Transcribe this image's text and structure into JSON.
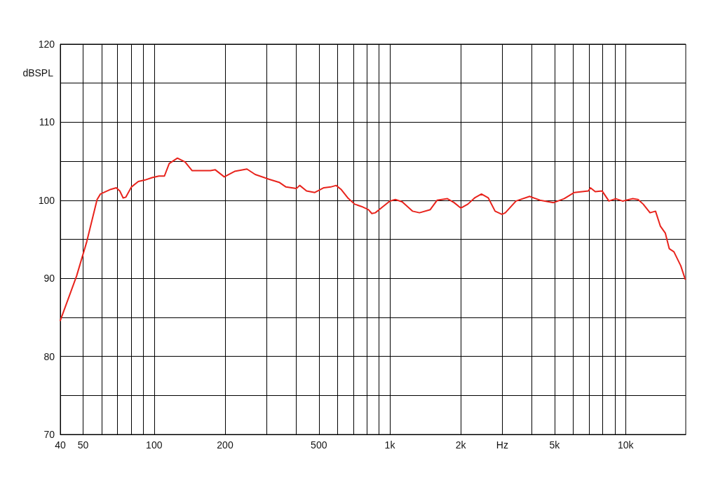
{
  "chart_data": {
    "type": "line",
    "ylabel": "dBSPL",
    "log": "x",
    "grid": true,
    "marker": "none",
    "line_style": "solid",
    "xlim": [
      40,
      18000
    ],
    "ylim": [
      70,
      120
    ],
    "xticks": [
      40,
      50,
      {
        "value": 60,
        "label": null
      },
      {
        "value": 70,
        "label": null
      },
      {
        "value": 80,
        "label": null
      },
      {
        "value": 90,
        "label": null
      },
      100,
      200,
      {
        "value": 300,
        "label": null
      },
      {
        "value": 400,
        "label": null
      },
      500,
      {
        "value": 600,
        "label": null
      },
      {
        "value": 700,
        "label": null
      },
      {
        "value": 800,
        "label": null
      },
      {
        "value": 900,
        "label": null
      },
      {
        "value": 1000,
        "label": "1k"
      },
      {
        "value": 2000,
        "label": "2k"
      },
      {
        "value": 3000,
        "label": "Hz"
      },
      {
        "value": 4000,
        "label": null
      },
      {
        "value": 5000,
        "label": "5k"
      },
      {
        "value": 6000,
        "label": null
      },
      {
        "value": 7000,
        "label": null
      },
      {
        "value": 8000,
        "label": null
      },
      {
        "value": 9000,
        "label": null
      },
      {
        "value": 10000,
        "label": "10k"
      }
    ],
    "yticks": [
      70,
      {
        "value": 75,
        "label": null
      },
      80,
      {
        "value": 85,
        "label": null
      },
      90,
      {
        "value": 95,
        "label": null
      },
      100,
      {
        "value": 105,
        "label": null
      },
      110,
      {
        "value": 115,
        "label": null
      },
      120
    ],
    "series": [
      {
        "color": "#e8231c",
        "x": [
          40,
          46.9,
          51.8,
          57.3,
          59.2,
          65.5,
          69.1,
          71.5,
          73.9,
          75.9,
          80.1,
          85.7,
          91.6,
          98,
          104.8,
          110.6,
          115.9,
          125.6,
          135.3,
          144.8,
          156.8,
          173.4,
          181.8,
          198.4,
          219.5,
          247.6,
          268.5,
          306.8,
          339.2,
          362.6,
          401.1,
          414.8,
          443.3,
          480.5,
          524.9,
          561,
          592,
          620.7,
          663.4,
          709.5,
          758.4,
          810.7,
          838.8,
          867.9,
          927.8,
          1000,
          1055,
          1128,
          1250,
          1336,
          1484,
          1586,
          1755,
          1873,
          2002,
          2142,
          2289,
          2447,
          2616,
          2796,
          2989,
          3090,
          3430,
          3919,
          4337,
          4950,
          5483,
          6061,
          6952,
          7094,
          7436,
          7949,
          8497,
          9084,
          9711,
          10730,
          11300,
          11880,
          12700,
          13400,
          14040,
          14740,
          15320,
          16040,
          17150,
          17900
        ],
        "values": [
          84.6,
          90.3,
          94.7,
          100.1,
          100.8,
          101.4,
          101.6,
          101.2,
          100.3,
          100.4,
          101.7,
          102.4,
          102.6,
          102.9,
          103.1,
          103.1,
          104.7,
          105.4,
          104.9,
          103.8,
          103.8,
          103.8,
          103.9,
          103,
          103.7,
          104,
          103.3,
          102.7,
          102.3,
          101.7,
          101.5,
          101.9,
          101.2,
          101,
          101.6,
          101.7,
          101.9,
          101.4,
          100.3,
          99.5,
          99.2,
          98.8,
          98.3,
          98.4,
          99.1,
          99.9,
          100.1,
          99.8,
          98.6,
          98.4,
          98.8,
          100,
          100.2,
          99.7,
          99,
          99.5,
          100.3,
          100.8,
          100.3,
          98.6,
          98.2,
          98.4,
          99.9,
          100.5,
          100,
          99.7,
          100.2,
          101,
          101.2,
          101.6,
          101.1,
          101.2,
          99.9,
          100.2,
          99.9,
          100.2,
          100.1,
          99.5,
          98.4,
          98.6,
          96.7,
          95.8,
          93.8,
          93.4,
          91.6,
          89.9
        ]
      }
    ]
  }
}
